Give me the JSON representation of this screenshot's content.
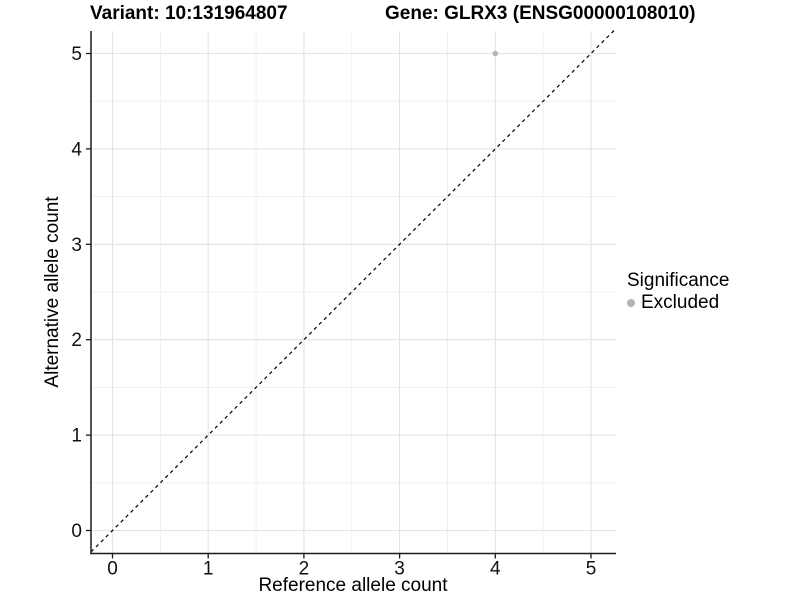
{
  "chart_data": {
    "type": "scatter",
    "titles": {
      "left": "Variant: 10:131964807",
      "right": "Gene: GLRX3 (ENSG00000108010)"
    },
    "xlabel": "Reference allele count",
    "ylabel": "Alternative allele count",
    "xlim": [
      -0.25,
      5.25
    ],
    "ylim": [
      -0.25,
      5.25
    ],
    "xticks": [
      0,
      1,
      2,
      3,
      4,
      5
    ],
    "yticks": [
      0,
      1,
      2,
      3,
      4,
      5
    ],
    "xticks_minor": [
      0.5,
      1.5,
      2.5,
      3.5,
      4.5
    ],
    "yticks_minor": [
      0.5,
      1.5,
      2.5,
      3.5,
      4.5
    ],
    "grid": "major+minor",
    "points": [
      {
        "x": 4,
        "y": 5,
        "significance": "Excluded",
        "color": "#b4b4b4"
      }
    ],
    "reference_line": {
      "slope": 1,
      "intercept": 0,
      "style": "dashed",
      "color": "#000000"
    },
    "legend": {
      "title": "Significance",
      "position": "right",
      "items": [
        {
          "label": "Excluded",
          "color": "#b4b4b4",
          "marker": "circle"
        }
      ]
    },
    "colors": {
      "grid_major": "#e3e3e3",
      "grid_minor": "#f0f0f0",
      "axis_line": "#1a1a1a",
      "tick_mark": "#1a1a1a"
    }
  }
}
